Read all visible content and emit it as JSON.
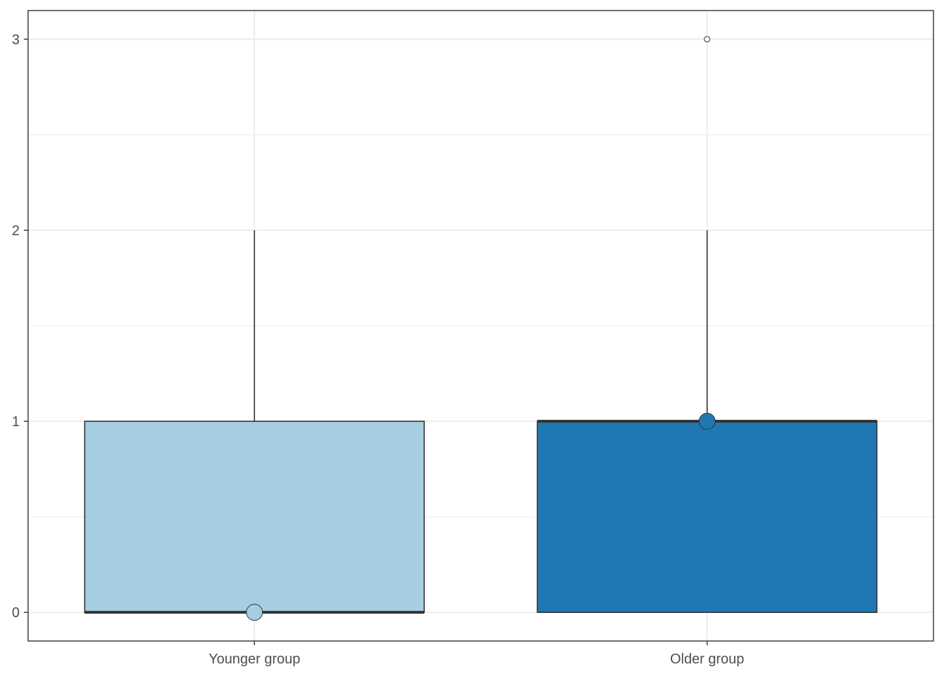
{
  "chart_data": {
    "type": "boxplot",
    "title": "",
    "xlabel": "",
    "ylabel": "",
    "ylim": [
      -0.15,
      3.15
    ],
    "y_ticks": [
      0,
      1,
      2,
      3
    ],
    "y_tick_labels": [
      "0",
      "1",
      "2",
      "3"
    ],
    "y_minor_ticks": [
      0.5,
      1.5,
      2.5
    ],
    "grid": true,
    "legend": "none",
    "categories": [
      "Younger group",
      "Older group"
    ],
    "boxes": [
      {
        "category": "Younger group",
        "min": 0,
        "q1": 0,
        "median": 0,
        "q3": 1,
        "max": 2,
        "mean": 0,
        "outliers": [],
        "fill": "#a6cee3"
      },
      {
        "category": "Older group",
        "min": 0,
        "q1": 0,
        "median": 1,
        "q3": 1,
        "max": 2,
        "mean": 1,
        "outliers": [
          3
        ],
        "fill": "#1f78b4"
      }
    ],
    "colors": {
      "grid": "#ebebeb",
      "box_outline": "#333333",
      "panel_border": "#333333",
      "tick_label": "#4d4d4d"
    }
  }
}
